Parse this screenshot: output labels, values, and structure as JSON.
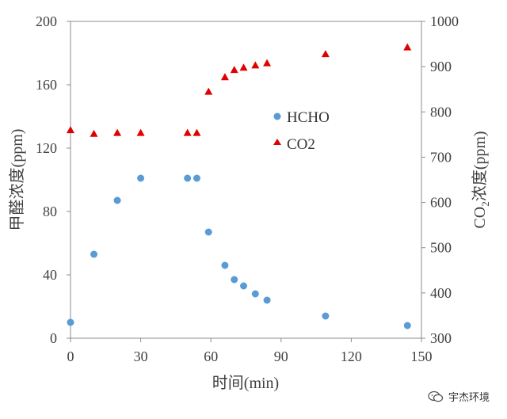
{
  "chart_data": {
    "type": "scatter",
    "xlabel": "时间(min)",
    "ylabel_left": "甲醛浓度(ppm)",
    "ylabel_right_prefix": "CO",
    "ylabel_right_sub": "2",
    "ylabel_right_suffix": "浓度(ppm)",
    "xlim": [
      0,
      150
    ],
    "ylim_left": [
      0,
      200
    ],
    "ylim_right": [
      300,
      1000
    ],
    "xticks": [
      0,
      30,
      60,
      90,
      120,
      150
    ],
    "yticks_left": [
      0,
      40,
      80,
      120,
      160,
      200
    ],
    "yticks_right": [
      300,
      400,
      500,
      600,
      700,
      800,
      900,
      1000
    ],
    "legend_position": "upper-center-right",
    "series": [
      {
        "name": "HCHO",
        "axis": "left",
        "marker": "circle",
        "color": "#5b9bd5",
        "x": [
          0,
          10,
          20,
          30,
          50,
          54,
          59,
          66,
          70,
          74,
          79,
          84,
          109,
          144
        ],
        "y": [
          10,
          53,
          87,
          101,
          101,
          101,
          67,
          46,
          37,
          33,
          28,
          24,
          14,
          8
        ]
      },
      {
        "name": "CO2",
        "axis": "right",
        "marker": "triangle",
        "color": "#e00000",
        "x": [
          0,
          10,
          20,
          30,
          50,
          54,
          59,
          66,
          70,
          74,
          79,
          84,
          109,
          144
        ],
        "y": [
          760,
          752,
          754,
          754,
          754,
          754,
          845,
          877,
          893,
          898,
          903,
          908,
          928,
          943
        ]
      }
    ]
  },
  "watermark": {
    "text": "宇杰环境",
    "icon": "wechat-icon"
  }
}
